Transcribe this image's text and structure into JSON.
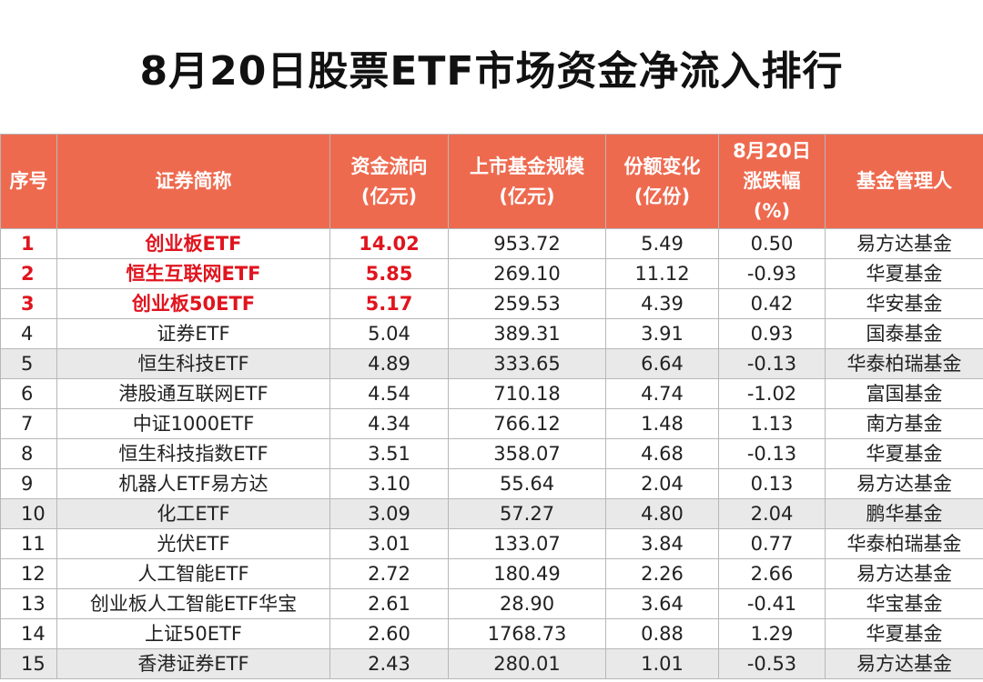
{
  "title": "8月20日股票ETF市场资金净流入排行",
  "headers": [
    [
      "序号"
    ],
    [
      "证券简称"
    ],
    [
      "资金流向",
      "(亿元)"
    ],
    [
      "上市基金规模",
      "(亿元)"
    ],
    [
      "份额变化",
      "(亿份)"
    ],
    [
      "8月20日",
      "涨跌幅",
      "(%)"
    ],
    [
      "基金管理人"
    ]
  ],
  "rows": [
    [
      "1",
      "创业板ETF",
      "14.02",
      "953.72",
      "5.49",
      "0.50",
      "易方达基金"
    ],
    [
      "2",
      "恒生互联网ETF",
      "5.85",
      "269.10",
      "11.12",
      "-0.93",
      "华夏基金"
    ],
    [
      "3",
      "创业板50ETF",
      "5.17",
      "259.53",
      "4.39",
      "0.42",
      "华安基金"
    ],
    [
      "4",
      "证券ETF",
      "5.04",
      "389.31",
      "3.91",
      "0.93",
      "国泰基金"
    ],
    [
      "5",
      "恒生科技ETF",
      "4.89",
      "333.65",
      "6.64",
      "-0.13",
      "华泰柏瑞基金"
    ],
    [
      "6",
      "港股通互联网ETF",
      "4.54",
      "710.18",
      "4.74",
      "-1.02",
      "富国基金"
    ],
    [
      "7",
      "中证1000ETF",
      "4.34",
      "766.12",
      "1.48",
      "1.13",
      "南方基金"
    ],
    [
      "8",
      "恒生科技指数ETF",
      "3.51",
      "358.07",
      "4.68",
      "-0.13",
      "华夏基金"
    ],
    [
      "9",
      "机器人ETF易方达",
      "3.10",
      "55.64",
      "2.04",
      "0.13",
      "易方达基金"
    ],
    [
      "10",
      "化工ETF",
      "3.09",
      "57.27",
      "4.80",
      "2.04",
      "鹏华基金"
    ],
    [
      "11",
      "光伏ETF",
      "3.01",
      "133.07",
      "3.84",
      "0.77",
      "华泰柏瑞基金"
    ],
    [
      "12",
      "人工智能ETF",
      "2.72",
      "180.49",
      "2.26",
      "2.66",
      "易方达基金"
    ],
    [
      "13",
      "创业板人工智能ETF华宝",
      "2.61",
      "28.90",
      "3.64",
      "-0.41",
      "华宝基金"
    ],
    [
      "14",
      "上证50ETF",
      "2.60",
      "1768.73",
      "0.88",
      "1.29",
      "华夏基金"
    ],
    [
      "15",
      "香港证券ETF",
      "2.43",
      "280.01",
      "1.01",
      "-0.53",
      "易方达基金"
    ]
  ],
  "highlight_rows": 3,
  "shaded_rows": [
    5,
    10,
    15
  ],
  "colors": {
    "header_bg": "#ee6a4f",
    "highlight_text": "#e0141e",
    "shade_bg": "#e9e9e9"
  }
}
